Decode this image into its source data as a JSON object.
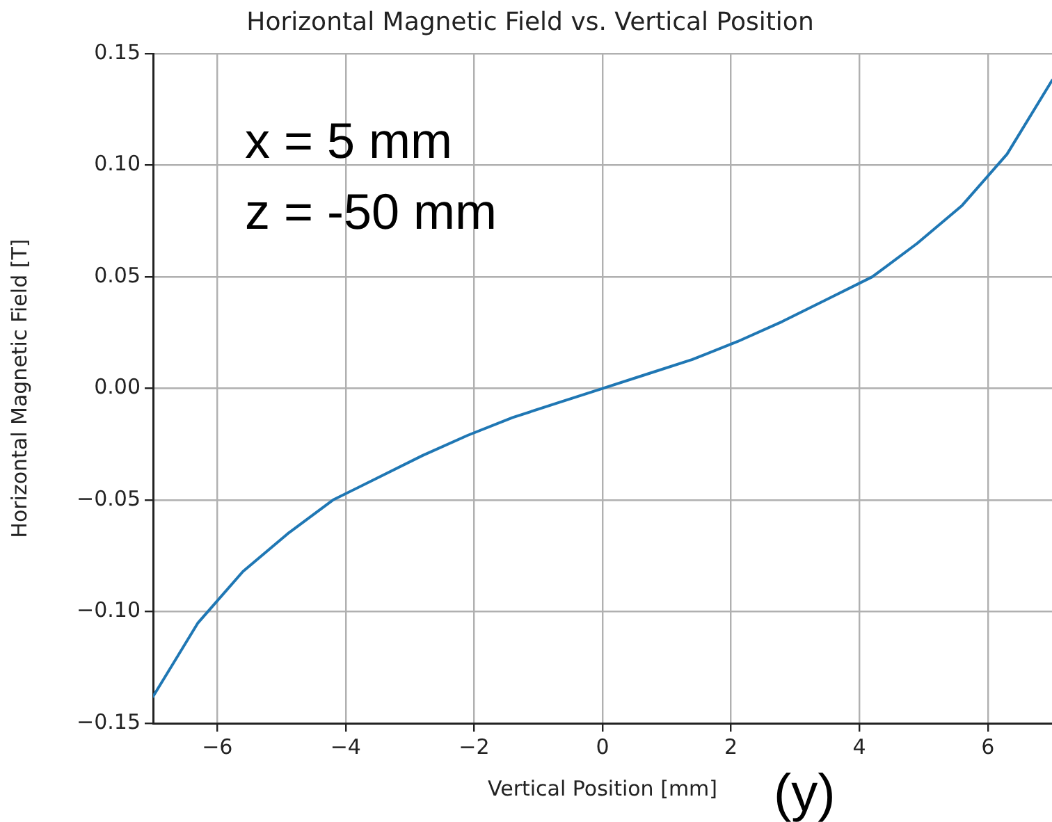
{
  "chart_data": {
    "type": "line",
    "title": "Horizontal Magnetic Field vs. Vertical Position",
    "xlabel": "Vertical Position [mm]",
    "ylabel": "Horizontal Magnetic Field [T]",
    "annotations": [
      "x = 5 mm",
      "z = -50 mm",
      "(y)"
    ],
    "x": [
      -7,
      -6.3,
      -5.6,
      -4.9,
      -4.2,
      -3.5,
      -2.8,
      -2.1,
      -1.4,
      -0.7,
      0,
      0.7,
      1.4,
      2.1,
      2.8,
      3.5,
      4.2,
      4.9,
      5.6,
      6.3,
      7
    ],
    "series": [
      {
        "color": "#1f77b4",
        "values": [
          -0.138,
          -0.105,
          -0.082,
          -0.065,
          -0.05,
          -0.04,
          -0.03,
          -0.021,
          -0.013,
          -0.0065,
          0,
          0.0065,
          0.013,
          0.021,
          0.03,
          0.04,
          0.05,
          0.065,
          0.082,
          0.105,
          0.138
        ]
      }
    ],
    "xlim": [
      -7,
      7
    ],
    "ylim": [
      -0.15,
      0.15
    ],
    "xticks": [
      {
        "value": -6,
        "label": "−6"
      },
      {
        "value": -4,
        "label": "−4"
      },
      {
        "value": -2,
        "label": "−2"
      },
      0,
      2,
      4,
      6
    ],
    "yticks": [
      {
        "value": -0.15,
        "label": "−0.15"
      },
      {
        "value": -0.1,
        "label": "−0.10"
      },
      {
        "value": -0.05,
        "label": "−0.05"
      },
      {
        "value": 0,
        "label": "0.00"
      },
      0.05,
      {
        "value": 0.1,
        "label": "0.10"
      },
      0.15
    ],
    "grid": true,
    "legend": false,
    "marker": "none",
    "line_style": "solid"
  }
}
